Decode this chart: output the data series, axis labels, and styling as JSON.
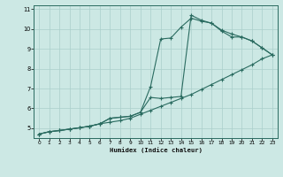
{
  "xlabel": "Humidex (Indice chaleur)",
  "bg_color": "#cce8e4",
  "grid_color": "#aacfcb",
  "line_color": "#2a6b60",
  "xlim": [
    -0.5,
    23.5
  ],
  "ylim": [
    4.5,
    11.2
  ],
  "xticks": [
    0,
    1,
    2,
    3,
    4,
    5,
    6,
    7,
    8,
    9,
    10,
    11,
    12,
    13,
    14,
    15,
    16,
    17,
    18,
    19,
    20,
    21,
    22,
    23
  ],
  "yticks": [
    5,
    6,
    7,
    8,
    9,
    10,
    11
  ],
  "line1_x": [
    0,
    1,
    2,
    3,
    4,
    5,
    6,
    7,
    8,
    9,
    10,
    11,
    12,
    13,
    14,
    15,
    16,
    17,
    18,
    19,
    20,
    21,
    22,
    23
  ],
  "line1_y": [
    4.7,
    4.82,
    4.88,
    4.95,
    5.02,
    5.1,
    5.22,
    5.3,
    5.38,
    5.5,
    5.7,
    5.9,
    6.1,
    6.3,
    6.5,
    6.7,
    6.95,
    7.2,
    7.45,
    7.7,
    7.95,
    8.2,
    8.5,
    8.7
  ],
  "line2_x": [
    0,
    1,
    2,
    3,
    4,
    5,
    6,
    7,
    8,
    9,
    10,
    11,
    12,
    13,
    14,
    15,
    16,
    17,
    18,
    19,
    20,
    21,
    22,
    23
  ],
  "line2_y": [
    4.7,
    4.82,
    4.88,
    4.95,
    5.02,
    5.1,
    5.22,
    5.5,
    5.55,
    5.6,
    5.8,
    7.1,
    9.5,
    9.55,
    10.1,
    10.55,
    10.4,
    10.3,
    9.9,
    9.6,
    9.6,
    9.4,
    9.05,
    8.7
  ],
  "line3_x": [
    0,
    1,
    2,
    3,
    4,
    5,
    6,
    7,
    8,
    9,
    10,
    11,
    12,
    13,
    14,
    15,
    16,
    17,
    18,
    19,
    20,
    21,
    22,
    23
  ],
  "line3_y": [
    4.7,
    4.82,
    4.88,
    4.95,
    5.02,
    5.1,
    5.22,
    5.5,
    5.55,
    5.6,
    5.8,
    6.55,
    6.5,
    6.55,
    6.6,
    10.7,
    10.45,
    10.3,
    9.95,
    9.75,
    9.6,
    9.4,
    9.05,
    8.7
  ]
}
